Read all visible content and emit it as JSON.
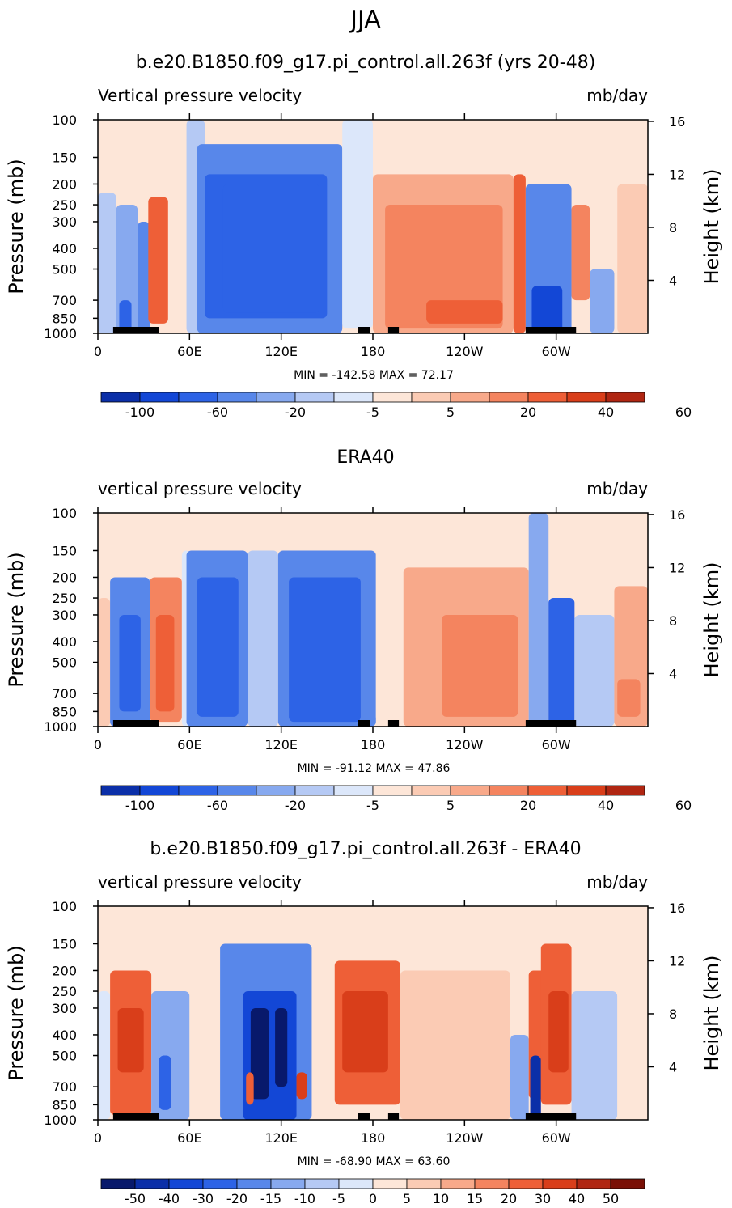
{
  "figure": {
    "title": "JJA",
    "colors": {
      "negative": [
        "#08196b",
        "#0b2fa8",
        "#1347d6",
        "#2d63e6",
        "#5887ea",
        "#87a9ef",
        "#b5c9f4",
        "#dce7fa"
      ],
      "positive": [
        "#fde6d8",
        "#fbcbb4",
        "#f8a98a",
        "#f4845f",
        "#ee5f37",
        "#d93e1a",
        "#b02612",
        "#7a1006"
      ],
      "land_mask": "#000000"
    }
  },
  "chart_data": [
    {
      "type": "heatmap",
      "title": "b.e20.B1850.f09_g17.pi_control.all.263f (yrs 20-48)",
      "subtitle_left": "Vertical pressure velocity",
      "subtitle_right": "mb/day",
      "xlabel": "",
      "ylabel": "Pressure (mb)",
      "ylabel_right": "Height (km)",
      "x_ticks": [
        "0",
        "60E",
        "120E",
        "180",
        "120W",
        "60W"
      ],
      "y_ticks": [
        "100",
        "150",
        "200",
        "250",
        "300",
        "400",
        "500",
        "700",
        "850",
        "1000"
      ],
      "y_right_ticks": [
        "16",
        "12",
        "8",
        "4"
      ],
      "minmax": "MIN = -142.58   MAX =   72.17",
      "min": -142.58,
      "max": 72.17,
      "colorbar_levels": [
        -100,
        -80,
        -60,
        -40,
        -20,
        -10,
        -5,
        0,
        5,
        10,
        20,
        30,
        40,
        50,
        60
      ],
      "colorbar_labels": [
        "-100",
        "-60",
        "-20",
        "-5",
        "5",
        "20",
        "40",
        "60"
      ],
      "cells": [
        {
          "lon": [
            0,
            12
          ],
          "p": [
            220,
            1000
          ],
          "v": -8
        },
        {
          "lon": [
            12,
            26
          ],
          "p": [
            250,
            1000
          ],
          "v": -20
        },
        {
          "lon": [
            14,
            22
          ],
          "p": [
            700,
            1000
          ],
          "v": -60
        },
        {
          "lon": [
            26,
            34
          ],
          "p": [
            300,
            1000
          ],
          "v": -25
        },
        {
          "lon": [
            33,
            46
          ],
          "p": [
            230,
            900
          ],
          "v": 30
        },
        {
          "lon": [
            46,
            58
          ],
          "p": [
            120,
            1000
          ],
          "v": 3
        },
        {
          "lon": [
            58,
            70
          ],
          "p": [
            100,
            1000
          ],
          "v": -8
        },
        {
          "lon": [
            65,
            160
          ],
          "p": [
            130,
            1000
          ],
          "v": -22
        },
        {
          "lon": [
            70,
            150
          ],
          "p": [
            180,
            850
          ],
          "v": -45
        },
        {
          "lon": [
            82,
            145
          ],
          "p": [
            200,
            800
          ],
          "v": -60
        },
        {
          "lon": [
            160,
            180
          ],
          "p": [
            100,
            950
          ],
          "v": -5
        },
        {
          "lon": [
            180,
            272
          ],
          "p": [
            180,
            1000
          ],
          "v": 10
        },
        {
          "lon": [
            188,
            265
          ],
          "p": [
            250,
            950
          ],
          "v": 25
        },
        {
          "lon": [
            215,
            265
          ],
          "p": [
            700,
            900
          ],
          "v": 38
        },
        {
          "lon": [
            272,
            280
          ],
          "p": [
            180,
            1000
          ],
          "v": 30
        },
        {
          "lon": [
            280,
            310
          ],
          "p": [
            200,
            1000
          ],
          "v": -30
        },
        {
          "lon": [
            284,
            304
          ],
          "p": [
            600,
            1000
          ],
          "v": -70
        },
        {
          "lon": [
            310,
            322
          ],
          "p": [
            250,
            700
          ],
          "v": 20
        },
        {
          "lon": [
            322,
            338
          ],
          "p": [
            500,
            1000
          ],
          "v": -20
        },
        {
          "lon": [
            340,
            360
          ],
          "p": [
            200,
            1000
          ],
          "v": 8
        }
      ]
    },
    {
      "type": "heatmap",
      "title": "ERA40",
      "subtitle_left": "vertical pressure velocity",
      "subtitle_right": "mb/day",
      "xlabel": "",
      "ylabel": "Pressure (mb)",
      "ylabel_right": "Height (km)",
      "x_ticks": [
        "0",
        "60E",
        "120E",
        "180",
        "120W",
        "60W"
      ],
      "y_ticks": [
        "100",
        "150",
        "200",
        "250",
        "300",
        "400",
        "500",
        "700",
        "850",
        "1000"
      ],
      "y_right_ticks": [
        "16",
        "12",
        "8",
        "4"
      ],
      "minmax": "MIN =  -91.12   MAX =   47.86",
      "min": -91.12,
      "max": 47.86,
      "colorbar_levels": [
        -100,
        -80,
        -60,
        -40,
        -20,
        -10,
        -5,
        0,
        5,
        10,
        20,
        30,
        40,
        50,
        60
      ],
      "colorbar_labels": [
        "-100",
        "-60",
        "-20",
        "-5",
        "5",
        "20",
        "40",
        "60"
      ],
      "cells": [
        {
          "lon": [
            0,
            8
          ],
          "p": [
            250,
            1000
          ],
          "v": 5
        },
        {
          "lon": [
            8,
            34
          ],
          "p": [
            200,
            1000
          ],
          "v": -30
        },
        {
          "lon": [
            14,
            28
          ],
          "p": [
            300,
            850
          ],
          "v": -50
        },
        {
          "lon": [
            34,
            55
          ],
          "p": [
            200,
            950
          ],
          "v": 25
        },
        {
          "lon": [
            38,
            50
          ],
          "p": [
            300,
            850
          ],
          "v": 38
        },
        {
          "lon": [
            55,
            60
          ],
          "p": [
            150,
            1000
          ],
          "v": -5
        },
        {
          "lon": [
            58,
            98
          ],
          "p": [
            150,
            1000
          ],
          "v": -30
        },
        {
          "lon": [
            65,
            92
          ],
          "p": [
            200,
            900
          ],
          "v": -45
        },
        {
          "lon": [
            98,
            118
          ],
          "p": [
            150,
            1000
          ],
          "v": -8
        },
        {
          "lon": [
            118,
            182
          ],
          "p": [
            150,
            1000
          ],
          "v": -25
        },
        {
          "lon": [
            125,
            172
          ],
          "p": [
            200,
            950
          ],
          "v": -42
        },
        {
          "lon": [
            182,
            200
          ],
          "p": [
            150,
            950
          ],
          "v": 3
        },
        {
          "lon": [
            200,
            282
          ],
          "p": [
            180,
            1000
          ],
          "v": 12
        },
        {
          "lon": [
            225,
            275
          ],
          "p": [
            300,
            900
          ],
          "v": 26
        },
        {
          "lon": [
            282,
            295
          ],
          "p": [
            100,
            1000
          ],
          "v": -12
        },
        {
          "lon": [
            295,
            312
          ],
          "p": [
            250,
            1000
          ],
          "v": -42
        },
        {
          "lon": [
            312,
            338
          ],
          "p": [
            300,
            1000
          ],
          "v": -8
        },
        {
          "lon": [
            338,
            360
          ],
          "p": [
            220,
            1000
          ],
          "v": 14
        },
        {
          "lon": [
            340,
            355
          ],
          "p": [
            600,
            900
          ],
          "v": 28
        }
      ]
    },
    {
      "type": "heatmap",
      "title": "b.e20.B1850.f09_g17.pi_control.all.263f - ERA40",
      "subtitle_left": "vertical pressure velocity",
      "subtitle_right": "mb/day",
      "xlabel": "",
      "ylabel": "Pressure (mb)",
      "ylabel_right": "Height (km)",
      "x_ticks": [
        "0",
        "60E",
        "120E",
        "180",
        "120W",
        "60W"
      ],
      "y_ticks": [
        "100",
        "150",
        "200",
        "250",
        "300",
        "400",
        "500",
        "700",
        "850",
        "1000"
      ],
      "y_right_ticks": [
        "16",
        "12",
        "8",
        "4"
      ],
      "minmax": "MIN =  -68.90   MAX =   63.60",
      "min": -68.9,
      "max": 63.6,
      "colorbar_levels": [
        -60,
        -50,
        -40,
        -30,
        -20,
        -15,
        -10,
        -5,
        0,
        5,
        10,
        15,
        20,
        30,
        40,
        50,
        60
      ],
      "colorbar_labels": [
        "-50",
        "-40",
        "-30",
        "-20",
        "-15",
        "-10",
        "-5",
        "0",
        "5",
        "10",
        "15",
        "20",
        "30",
        "40",
        "50"
      ],
      "cells": [
        {
          "lon": [
            0,
            8
          ],
          "p": [
            250,
            1000
          ],
          "v": -4
        },
        {
          "lon": [
            8,
            35
          ],
          "p": [
            200,
            950
          ],
          "v": 22
        },
        {
          "lon": [
            13,
            30
          ],
          "p": [
            300,
            600
          ],
          "v": 38
        },
        {
          "lon": [
            35,
            60
          ],
          "p": [
            250,
            1000
          ],
          "v": -15
        },
        {
          "lon": [
            40,
            48
          ],
          "p": [
            500,
            900
          ],
          "v": -30
        },
        {
          "lon": [
            60,
            80
          ],
          "p": [
            200,
            1000
          ],
          "v": 3
        },
        {
          "lon": [
            80,
            140
          ],
          "p": [
            150,
            1000
          ],
          "v": -20
        },
        {
          "lon": [
            95,
            130
          ],
          "p": [
            250,
            1000
          ],
          "v": -40
        },
        {
          "lon": [
            100,
            112
          ],
          "p": [
            300,
            800
          ],
          "v": -58
        },
        {
          "lon": [
            116,
            124
          ],
          "p": [
            300,
            700
          ],
          "v": -55
        },
        {
          "lon": [
            97,
            102
          ],
          "p": [
            600,
            850
          ],
          "v": 25
        },
        {
          "lon": [
            130,
            137
          ],
          "p": [
            600,
            800
          ],
          "v": 30
        },
        {
          "lon": [
            155,
            198
          ],
          "p": [
            180,
            850
          ],
          "v": 20
        },
        {
          "lon": [
            160,
            190
          ],
          "p": [
            250,
            600
          ],
          "v": 35
        },
        {
          "lon": [
            198,
            270
          ],
          "p": [
            200,
            1000
          ],
          "v": 8
        },
        {
          "lon": [
            270,
            282
          ],
          "p": [
            400,
            1000
          ],
          "v": -15
        },
        {
          "lon": [
            282,
            295
          ],
          "p": [
            200,
            800
          ],
          "v": 25
        },
        {
          "lon": [
            283,
            290
          ],
          "p": [
            500,
            1000
          ],
          "v": -45
        },
        {
          "lon": [
            290,
            310
          ],
          "p": [
            150,
            850
          ],
          "v": 20
        },
        {
          "lon": [
            295,
            308
          ],
          "p": [
            250,
            600
          ],
          "v": 35
        },
        {
          "lon": [
            310,
            340
          ],
          "p": [
            250,
            1000
          ],
          "v": -10
        },
        {
          "lon": [
            340,
            360
          ],
          "p": [
            150,
            1000
          ],
          "v": 3
        }
      ]
    }
  ]
}
